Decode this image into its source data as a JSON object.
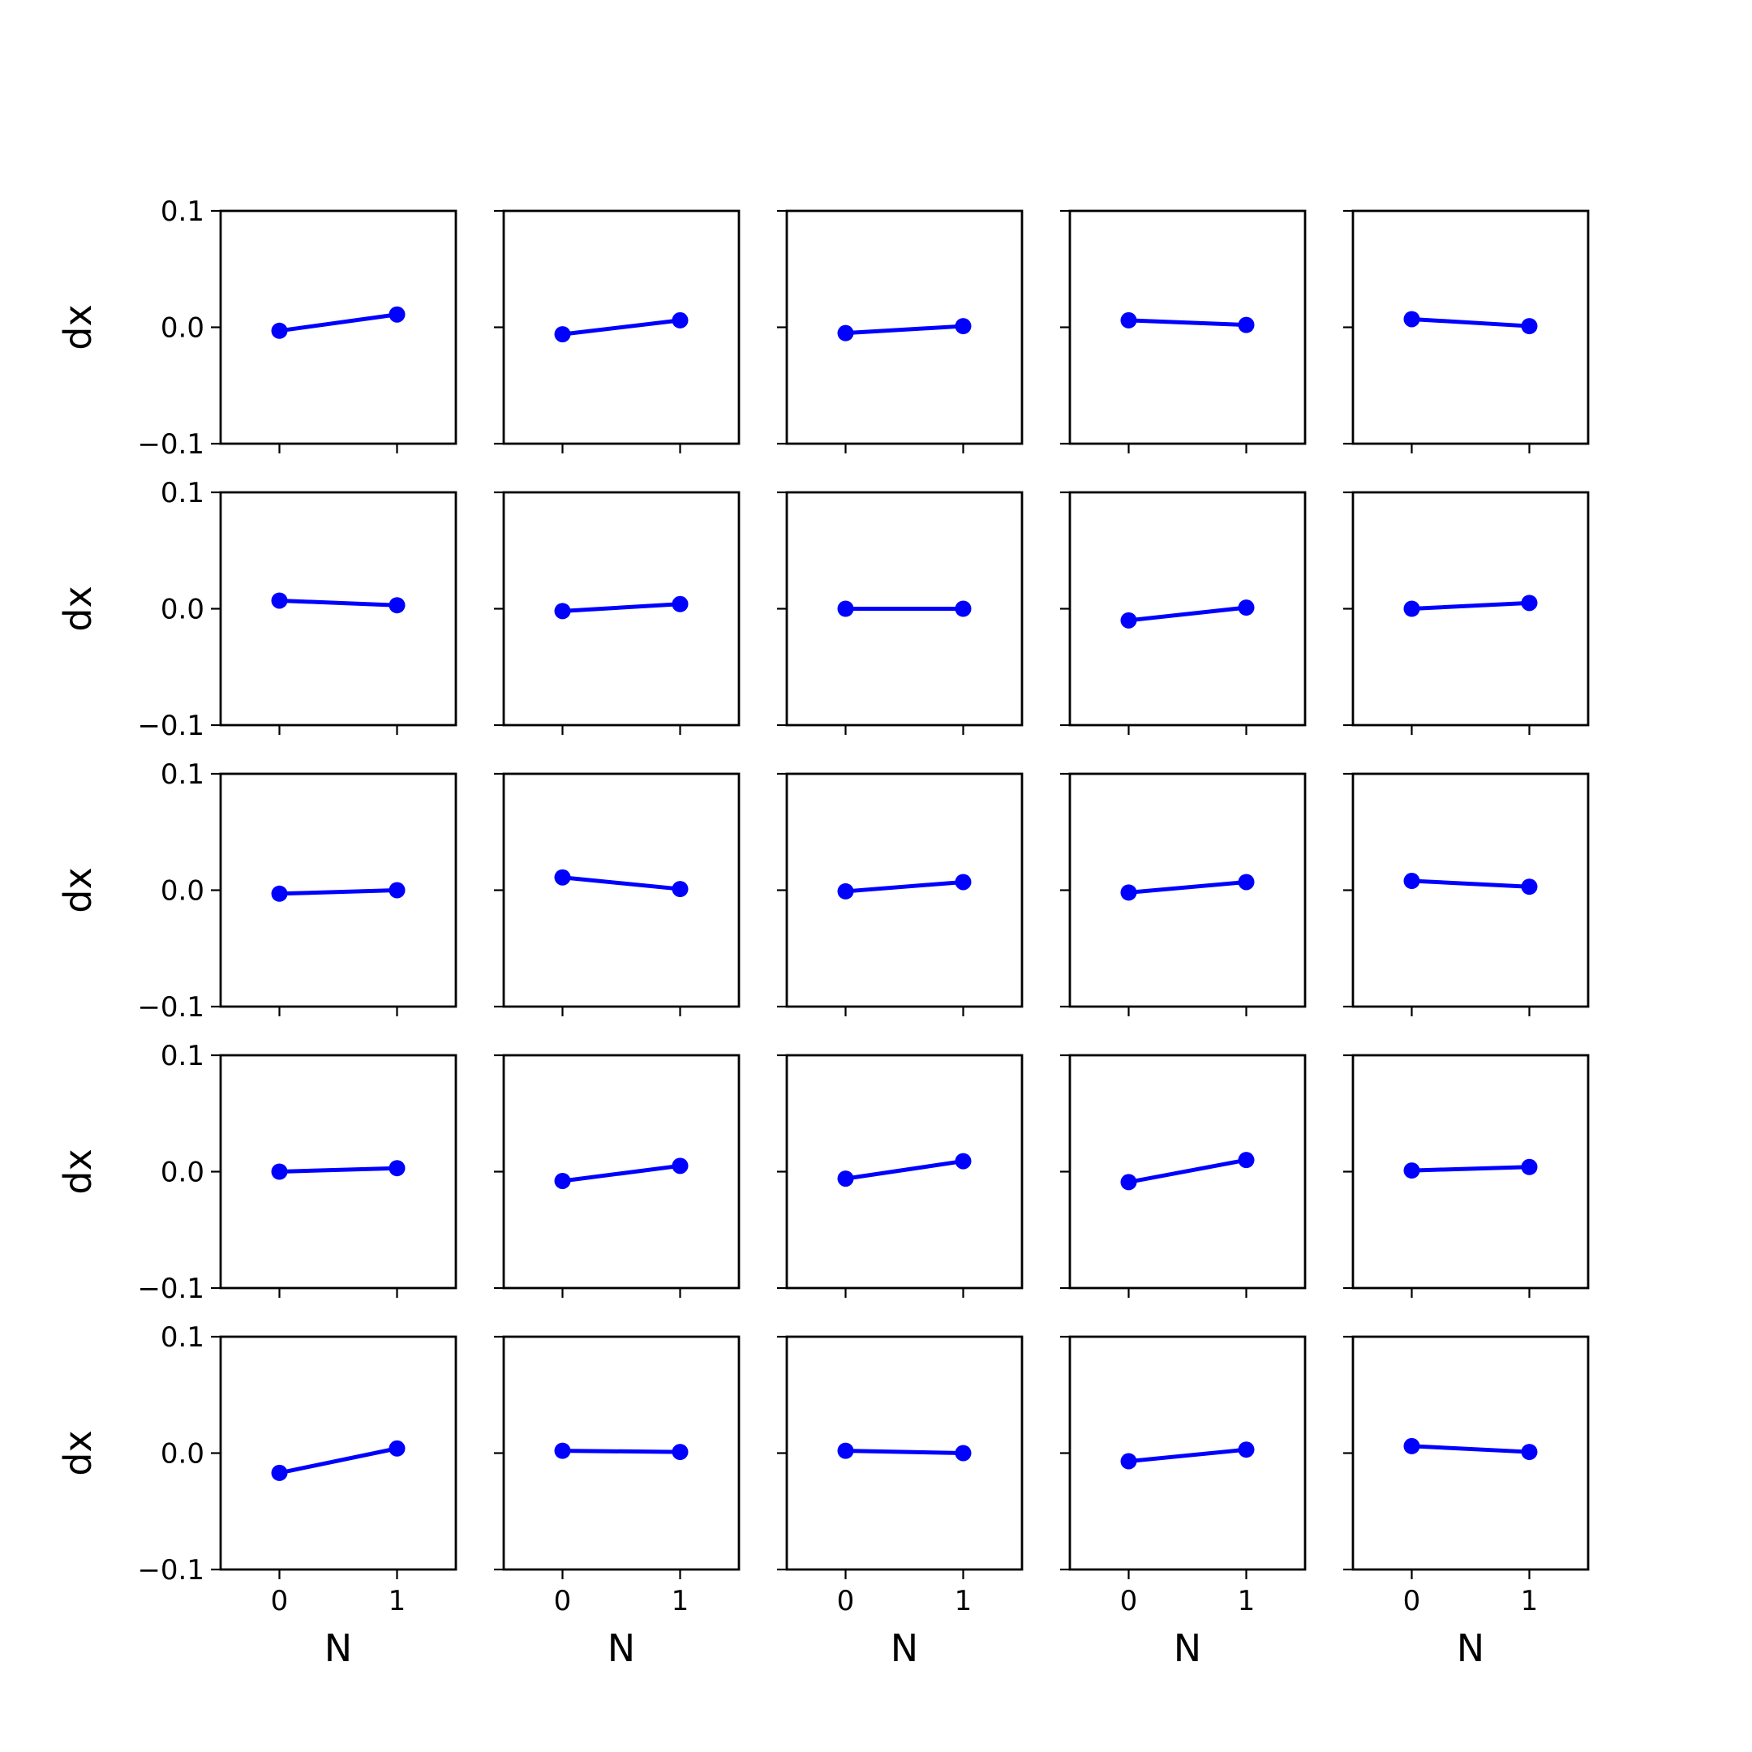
{
  "figure": {
    "rows": 5,
    "cols": 5,
    "xlabel": "N",
    "ylabel": "dx",
    "line_color": "#0000ff",
    "axis_color": "#000000",
    "xticks": [
      0,
      1
    ],
    "yticks": [
      -0.1,
      0.0,
      0.1
    ],
    "ytick_labels": [
      "−0.1",
      "0.0",
      "0.1"
    ],
    "xlim": [
      -0.5,
      1.5
    ],
    "ylim": [
      -0.1,
      0.1
    ]
  },
  "chart_data": [
    {
      "type": "line",
      "row": 1,
      "col": 1,
      "x": [
        0,
        1
      ],
      "y": [
        -0.003,
        0.011
      ]
    },
    {
      "type": "line",
      "row": 1,
      "col": 2,
      "x": [
        0,
        1
      ],
      "y": [
        -0.006,
        0.006
      ]
    },
    {
      "type": "line",
      "row": 1,
      "col": 3,
      "x": [
        0,
        1
      ],
      "y": [
        -0.005,
        0.001
      ]
    },
    {
      "type": "line",
      "row": 1,
      "col": 4,
      "x": [
        0,
        1
      ],
      "y": [
        0.006,
        0.002
      ]
    },
    {
      "type": "line",
      "row": 1,
      "col": 5,
      "x": [
        0,
        1
      ],
      "y": [
        0.007,
        0.001
      ]
    },
    {
      "type": "line",
      "row": 2,
      "col": 1,
      "x": [
        0,
        1
      ],
      "y": [
        0.007,
        0.003
      ]
    },
    {
      "type": "line",
      "row": 2,
      "col": 2,
      "x": [
        0,
        1
      ],
      "y": [
        -0.002,
        0.004
      ]
    },
    {
      "type": "line",
      "row": 2,
      "col": 3,
      "x": [
        0,
        1
      ],
      "y": [
        0.0,
        0.0
      ]
    },
    {
      "type": "line",
      "row": 2,
      "col": 4,
      "x": [
        0,
        1
      ],
      "y": [
        -0.01,
        0.001
      ]
    },
    {
      "type": "line",
      "row": 2,
      "col": 5,
      "x": [
        0,
        1
      ],
      "y": [
        0.0,
        0.005
      ]
    },
    {
      "type": "line",
      "row": 3,
      "col": 1,
      "x": [
        0,
        1
      ],
      "y": [
        -0.003,
        0.0
      ]
    },
    {
      "type": "line",
      "row": 3,
      "col": 2,
      "x": [
        0,
        1
      ],
      "y": [
        0.011,
        0.001
      ]
    },
    {
      "type": "line",
      "row": 3,
      "col": 3,
      "x": [
        0,
        1
      ],
      "y": [
        -0.001,
        0.007
      ]
    },
    {
      "type": "line",
      "row": 3,
      "col": 4,
      "x": [
        0,
        1
      ],
      "y": [
        -0.002,
        0.007
      ]
    },
    {
      "type": "line",
      "row": 3,
      "col": 5,
      "x": [
        0,
        1
      ],
      "y": [
        0.008,
        0.003
      ]
    },
    {
      "type": "line",
      "row": 4,
      "col": 1,
      "x": [
        0,
        1
      ],
      "y": [
        0.0,
        0.003
      ]
    },
    {
      "type": "line",
      "row": 4,
      "col": 2,
      "x": [
        0,
        1
      ],
      "y": [
        -0.008,
        0.005
      ]
    },
    {
      "type": "line",
      "row": 4,
      "col": 3,
      "x": [
        0,
        1
      ],
      "y": [
        -0.006,
        0.009
      ]
    },
    {
      "type": "line",
      "row": 4,
      "col": 4,
      "x": [
        0,
        1
      ],
      "y": [
        -0.009,
        0.01
      ]
    },
    {
      "type": "line",
      "row": 4,
      "col": 5,
      "x": [
        0,
        1
      ],
      "y": [
        0.001,
        0.004
      ]
    },
    {
      "type": "line",
      "row": 5,
      "col": 1,
      "x": [
        0,
        1
      ],
      "y": [
        -0.017,
        0.004
      ]
    },
    {
      "type": "line",
      "row": 5,
      "col": 2,
      "x": [
        0,
        1
      ],
      "y": [
        0.002,
        0.001
      ]
    },
    {
      "type": "line",
      "row": 5,
      "col": 3,
      "x": [
        0,
        1
      ],
      "y": [
        0.002,
        0.0
      ]
    },
    {
      "type": "line",
      "row": 5,
      "col": 4,
      "x": [
        0,
        1
      ],
      "y": [
        -0.007,
        0.003
      ]
    },
    {
      "type": "line",
      "row": 5,
      "col": 5,
      "x": [
        0,
        1
      ],
      "y": [
        0.006,
        0.001
      ]
    }
  ]
}
